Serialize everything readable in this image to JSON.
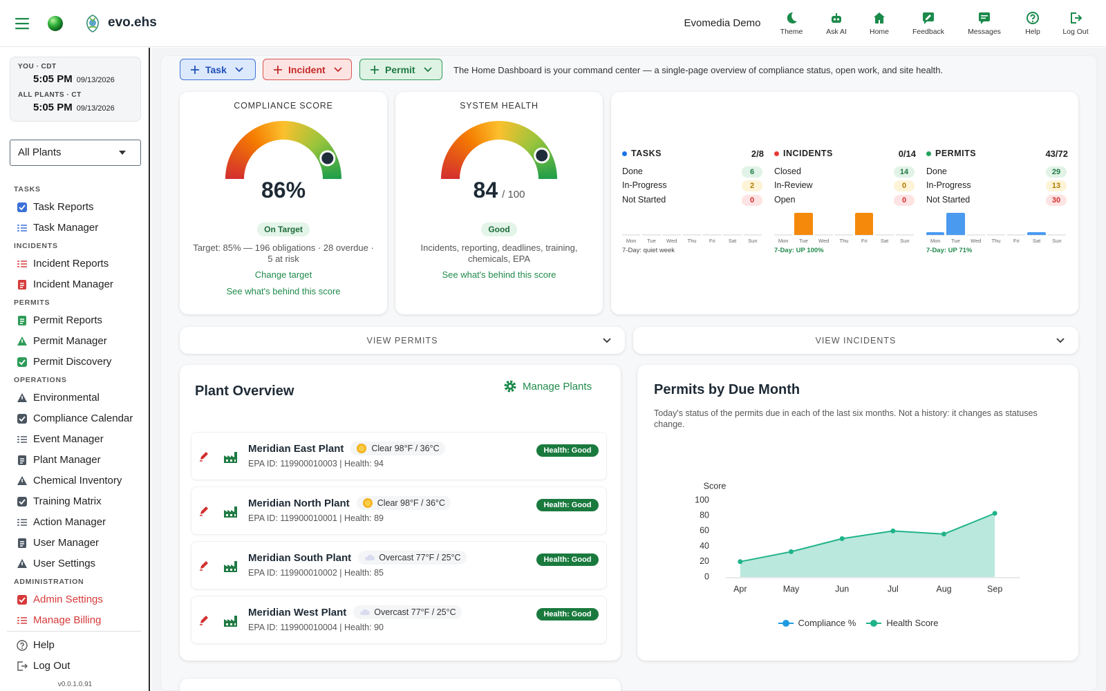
{
  "header": {
    "brand": "evo.ehs",
    "user": "Evomedia Demo",
    "nav": [
      "Theme",
      "Ask AI",
      "Home",
      "Feedback",
      "Messages",
      "Help",
      "Log Out"
    ]
  },
  "sidebar": {
    "clock": {
      "you_label": "YOU · CDT",
      "you_time": "5:05 PM",
      "you_date": "09/13/2026",
      "all_label": "ALL PLANTS · CT",
      "all_time": "5:05 PM",
      "all_date": "09/13/2026"
    },
    "plant_select": "All Plants",
    "sections": [
      {
        "title": "TASKS",
        "items": [
          "Task Reports",
          "Task Manager"
        ]
      },
      {
        "title": "INCIDENTS",
        "items": [
          "Incident Reports",
          "Incident Manager"
        ]
      },
      {
        "title": "PERMITS",
        "items": [
          "Permit Reports",
          "Permit Manager",
          "Permit Discovery"
        ]
      },
      {
        "title": "OPERATIONS",
        "items": [
          "Environmental",
          "Compliance Calendar",
          "Event Manager",
          "Plant Manager",
          "Chemical Inventory",
          "Training Matrix",
          "Action Manager",
          "User Manager",
          "User Settings"
        ]
      },
      {
        "title": "ADMINISTRATION",
        "items": [
          "Admin Settings",
          "Manage Billing"
        ]
      }
    ],
    "footer": [
      "Help",
      "Log Out"
    ],
    "version": "v0.0.1.0.91"
  },
  "toolbar": {
    "buttons": [
      "Task",
      "Incident",
      "Permit"
    ],
    "intro": "The Home Dashboard is your command center — a single-page overview of compliance status, open work, and site health."
  },
  "gauges": [
    {
      "title": "COMPLIANCE SCORE",
      "value": 86,
      "value_label": "86%",
      "max": 100,
      "status": "On Target",
      "description": "Target: 85% — 196 obligations · 28 overdue · 5 at risk",
      "links": [
        "Change target",
        "See what's behind this score"
      ]
    },
    {
      "title": "SYSTEM HEALTH",
      "value": 84,
      "max": 100,
      "max_label": "/ 100",
      "status": "Good",
      "description": "Incidents, reporting, deadlines, training, chemicals, EPA",
      "links": [
        "See what's behind this score"
      ]
    }
  ],
  "stats": {
    "days": [
      "Mon",
      "Tue",
      "Wed",
      "Thu",
      "Fri",
      "Sat",
      "Sun"
    ],
    "groups": [
      {
        "name": "TASKS",
        "color": "#1a73e8",
        "total": "2/8",
        "rows": [
          {
            "label": "Done",
            "value": 6
          },
          {
            "label": "In-Progress",
            "value": 2
          },
          {
            "label": "Not Started",
            "value": 0
          }
        ],
        "bar_color": "#4a9af0",
        "bars": [
          0,
          0,
          0,
          0,
          0,
          0,
          0
        ],
        "trend": "7-Day: quiet week"
      },
      {
        "name": "INCIDENTS",
        "color": "#e53935",
        "total": "0/14",
        "rows": [
          {
            "label": "Closed",
            "value": 14
          },
          {
            "label": "In-Review",
            "value": 0
          },
          {
            "label": "Open",
            "value": 0
          }
        ],
        "bar_color": "#f5890c",
        "bars": [
          0,
          1,
          0,
          0,
          1,
          0,
          0
        ],
        "trend": "7-Day: UP 100%"
      },
      {
        "name": "PERMITS",
        "color": "#22a35a",
        "total": "43/72",
        "rows": [
          {
            "label": "Done",
            "value": 29
          },
          {
            "label": "In-Progress",
            "value": 13
          },
          {
            "label": "Not Started",
            "value": 30
          }
        ],
        "bar_color": "#4a9af0",
        "bars": [
          1,
          9,
          0,
          0,
          0,
          1,
          0
        ],
        "trend": "7-Day: UP 71%"
      }
    ]
  },
  "toggles": [
    "VIEW PERMITS",
    "VIEW INCIDENTS"
  ],
  "plants": {
    "title": "Plant Overview",
    "action": "Manage Plants",
    "rows": [
      {
        "name": "Meridian East Plant",
        "weather": "Clear 98°F / 36°C",
        "epa": "EPA ID: 119900010003 | Health: 94",
        "health": "Health: Good"
      },
      {
        "name": "Meridian North Plant",
        "weather": "Clear 98°F / 36°C",
        "epa": "EPA ID: 119900010001 | Health: 89",
        "health": "Health: Good"
      },
      {
        "name": "Meridian South Plant",
        "weather": "Overcast 77°F / 25°C",
        "epa": "EPA ID: 119900010002 | Health: 85",
        "health": "Health: Good"
      },
      {
        "name": "Meridian West Plant",
        "weather": "Overcast 77°F / 25°C",
        "epa": "EPA ID: 119900010004 | Health: 90",
        "health": "Health: Good"
      }
    ]
  },
  "chart_data": {
    "type": "line",
    "title": "Permits by Due Month",
    "subtitle": "Today's status of the permits due in each of the last six months. Not a history: it changes as statuses change.",
    "ylabel": "Score",
    "categories": [
      "Apr",
      "May",
      "Jun",
      "Jul",
      "Aug",
      "Sep"
    ],
    "ylim": [
      0,
      100
    ],
    "yticks": [
      0,
      20,
      40,
      60,
      80,
      100
    ],
    "grid": false,
    "legend": "bottom",
    "series": [
      {
        "name": "Compliance %",
        "color": "#1e9be0",
        "values": [
          null,
          null,
          null,
          null,
          null,
          null
        ]
      },
      {
        "name": "Health Score",
        "color": "#1fb38a",
        "area": true,
        "values": [
          20,
          33,
          50,
          60,
          56,
          83
        ]
      }
    ]
  }
}
